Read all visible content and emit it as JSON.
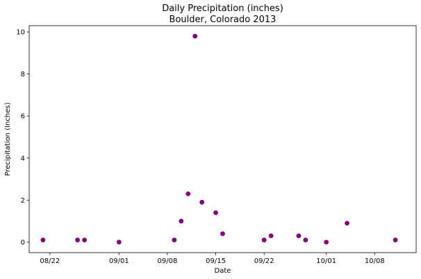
{
  "chart_data": {
    "type": "scatter",
    "title": [
      "Daily Precipitation (inches)",
      "Boulder, Colorado 2013"
    ],
    "xlabel": "Date",
    "ylabel": "Precipitation (Inches)",
    "x_axis_type": "date",
    "xlim": [
      "2013-08-19",
      "2013-10-14"
    ],
    "ylim": [
      -0.5,
      10.3
    ],
    "xticks": [
      {
        "date": "2013-08-22",
        "label": "08/22"
      },
      {
        "date": "2013-09-01",
        "label": "09/01"
      },
      {
        "date": "2013-09-08",
        "label": "09/08"
      },
      {
        "date": "2013-09-15",
        "label": "09/15"
      },
      {
        "date": "2013-09-22",
        "label": "09/22"
      },
      {
        "date": "2013-10-01",
        "label": "10/01"
      },
      {
        "date": "2013-10-08",
        "label": "10/08"
      }
    ],
    "yticks": [
      0,
      2,
      4,
      6,
      8,
      10
    ],
    "grid": false,
    "legend": "none",
    "marker_color": "#800080",
    "points": [
      {
        "date": "2013-08-21",
        "value": 0.1
      },
      {
        "date": "2013-08-26",
        "value": 0.1
      },
      {
        "date": "2013-08-27",
        "value": 0.1
      },
      {
        "date": "2013-09-01",
        "value": 0.0
      },
      {
        "date": "2013-09-09",
        "value": 0.1
      },
      {
        "date": "2013-09-10",
        "value": 1.0
      },
      {
        "date": "2013-09-11",
        "value": 2.3
      },
      {
        "date": "2013-09-12",
        "value": 9.8
      },
      {
        "date": "2013-09-13",
        "value": 1.9
      },
      {
        "date": "2013-09-15",
        "value": 1.4
      },
      {
        "date": "2013-09-16",
        "value": 0.4
      },
      {
        "date": "2013-09-22",
        "value": 0.1
      },
      {
        "date": "2013-09-23",
        "value": 0.3
      },
      {
        "date": "2013-09-27",
        "value": 0.3
      },
      {
        "date": "2013-09-28",
        "value": 0.1
      },
      {
        "date": "2013-10-01",
        "value": 0.0
      },
      {
        "date": "2013-10-04",
        "value": 0.9
      },
      {
        "date": "2013-10-11",
        "value": 0.1
      }
    ]
  }
}
